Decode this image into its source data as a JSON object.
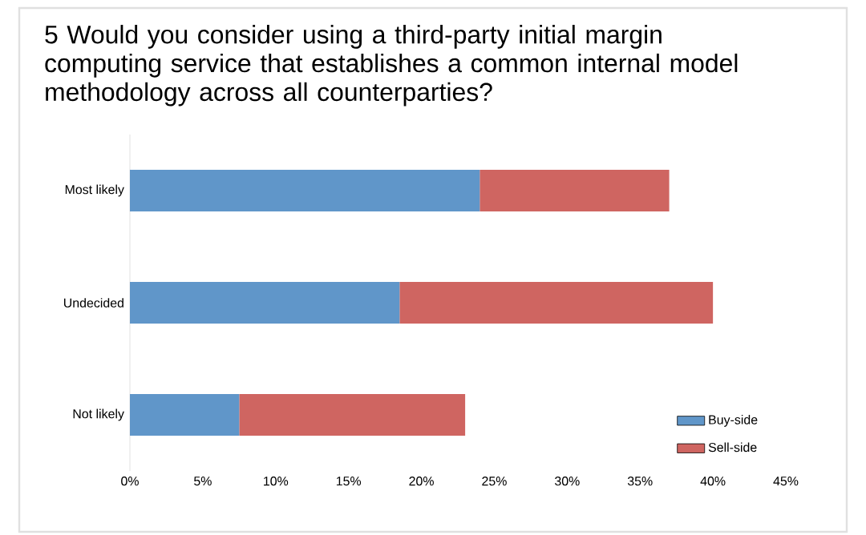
{
  "chart_data": {
    "type": "bar",
    "orientation": "horizontal",
    "stacked": true,
    "title": "5 Would you consider using a third-party initial margin computing service that establishes a common internal model methodology across all counterparties?",
    "categories": [
      "Most likely",
      "Undecided",
      "Not likely"
    ],
    "series": [
      {
        "name": "Buy-side",
        "color": "#6096c9",
        "values": [
          24,
          18.5,
          7.5
        ]
      },
      {
        "name": "Sell-side",
        "color": "#cf6561",
        "values": [
          13,
          21.5,
          15.5
        ]
      }
    ],
    "xlim": [
      0,
      45
    ],
    "xticks": [
      {
        "value": 0,
        "label": "0%"
      },
      {
        "value": 5,
        "label": "5%"
      },
      {
        "value": 10,
        "label": "10%"
      },
      {
        "value": 15,
        "label": "15%"
      },
      {
        "value": 20,
        "label": "20%"
      },
      {
        "value": 25,
        "label": "25%"
      },
      {
        "value": 30,
        "label": "30%"
      },
      {
        "value": 35,
        "label": "35%"
      },
      {
        "value": 40,
        "label": "40%"
      },
      {
        "value": 45,
        "label": "45%"
      }
    ],
    "grid": false,
    "legend": "bottom right"
  }
}
